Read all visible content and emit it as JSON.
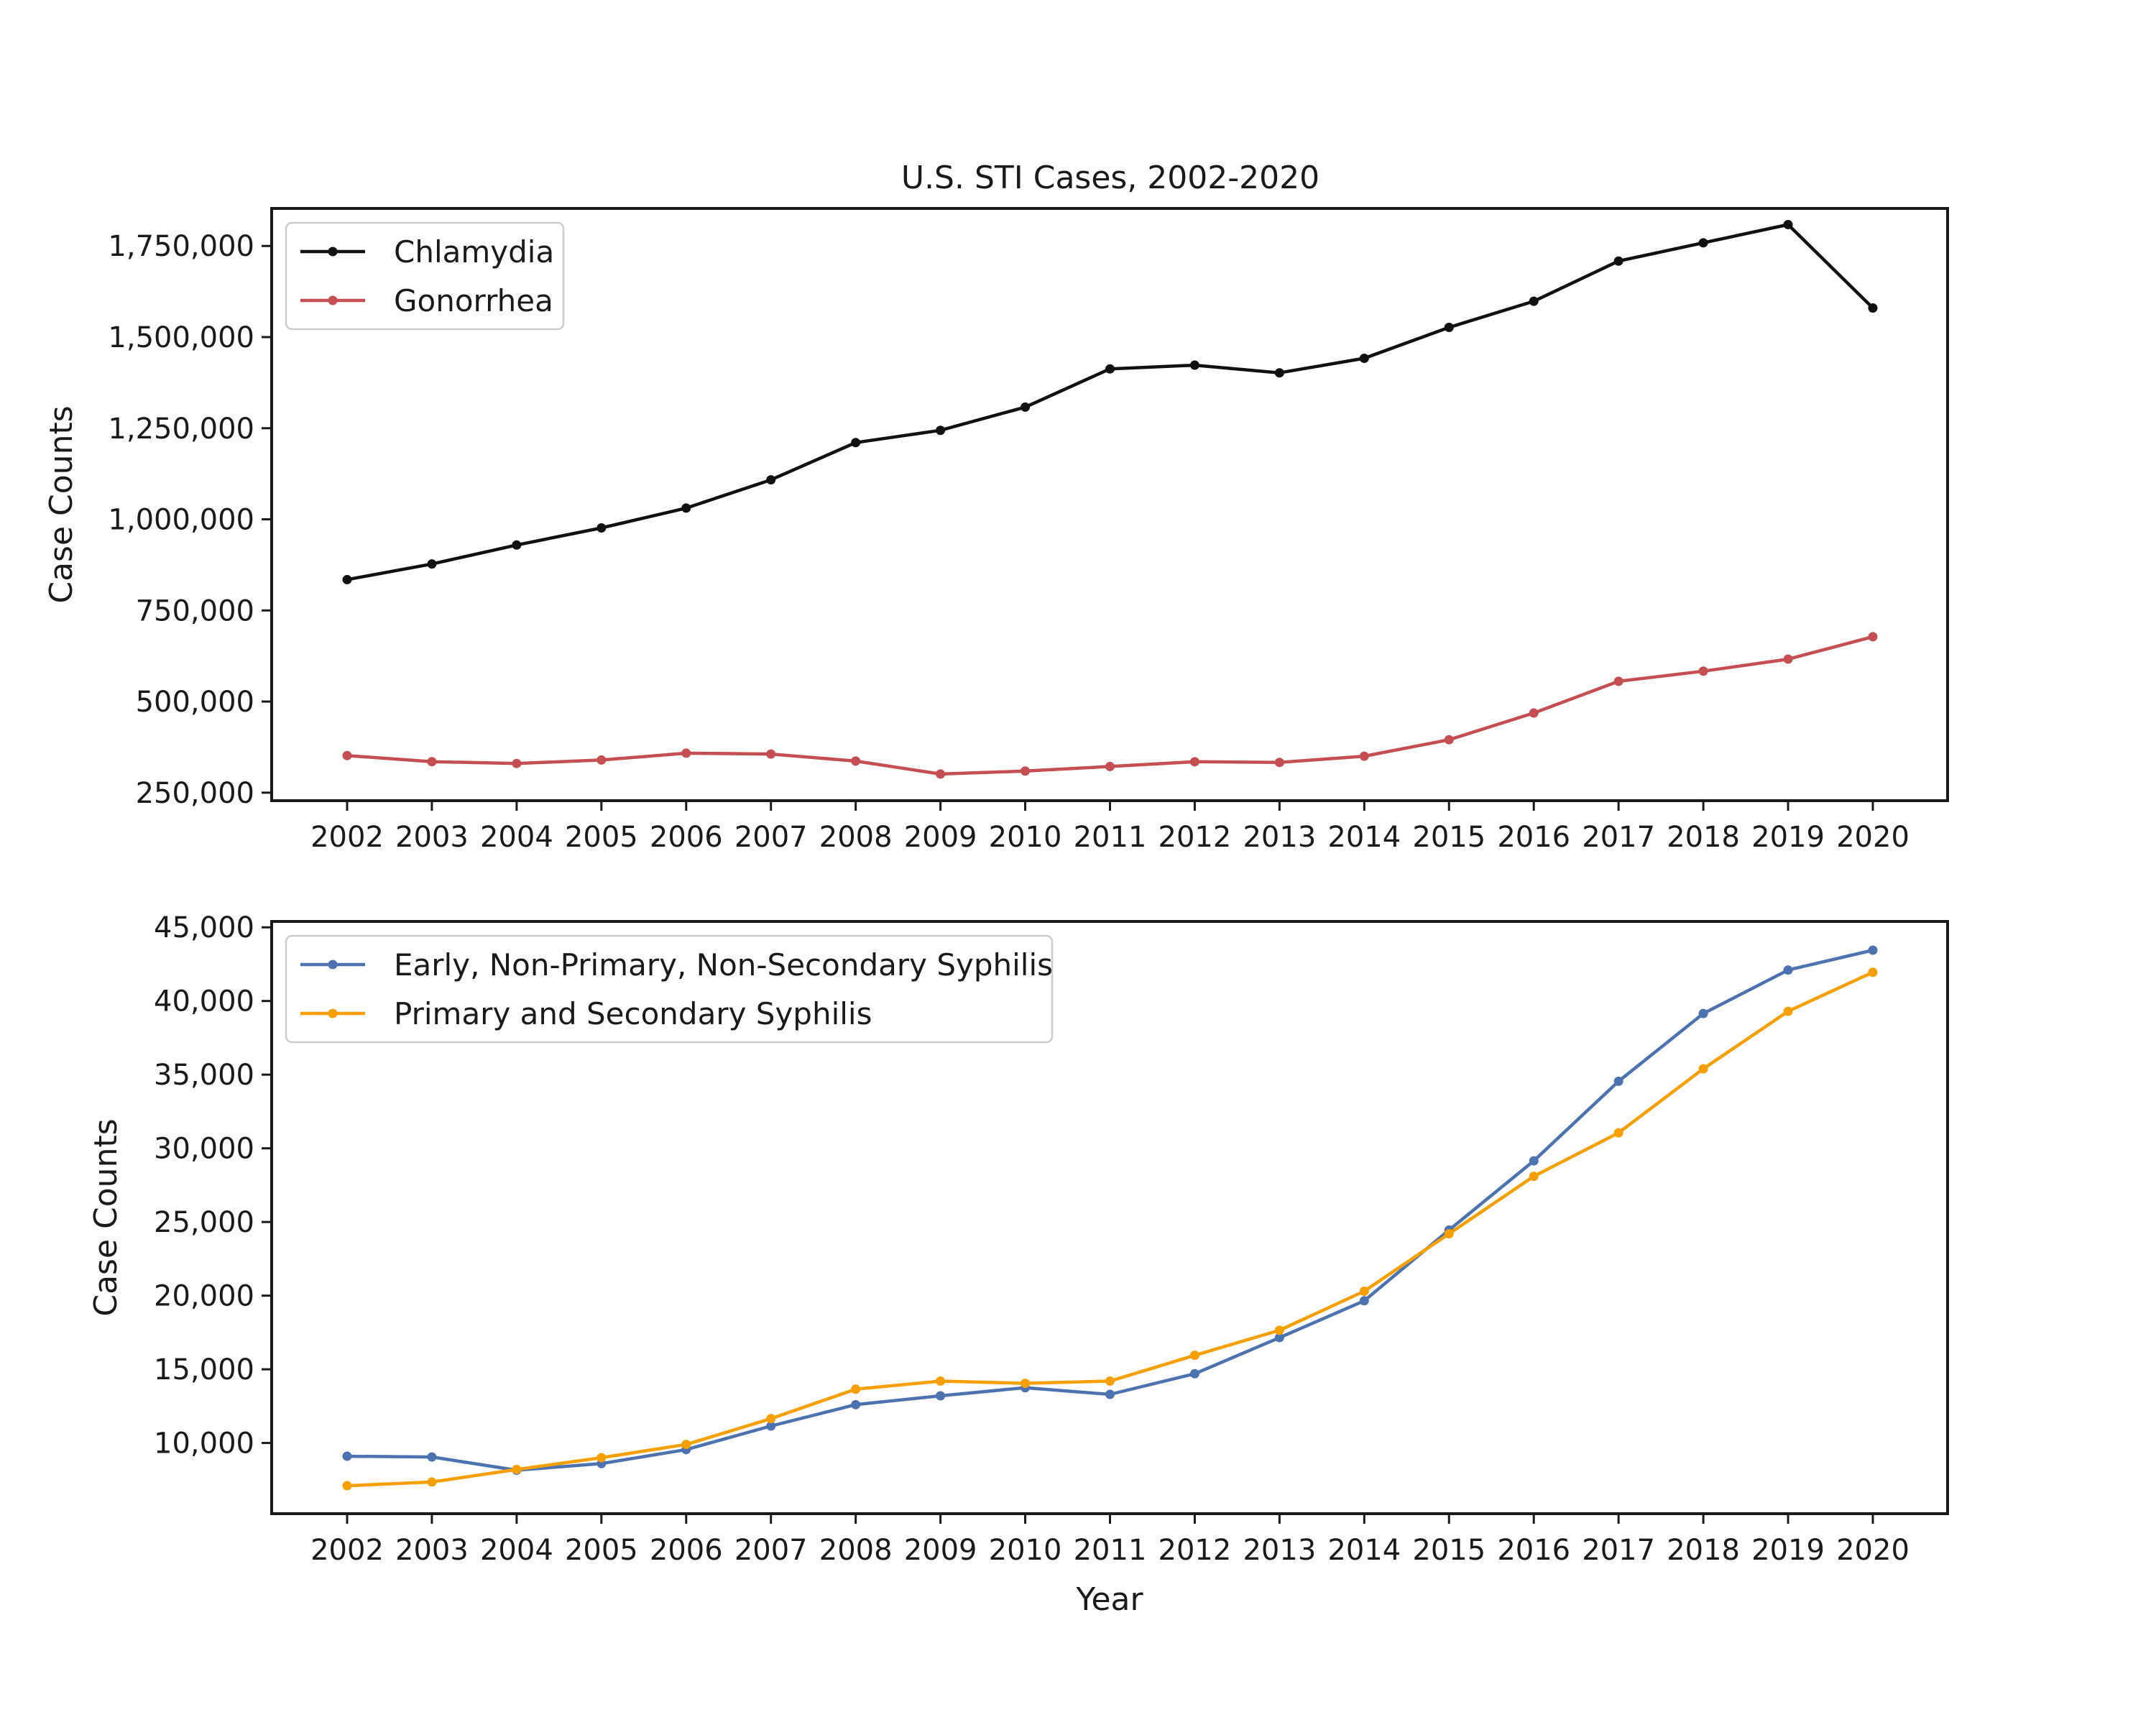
{
  "chart_data": [
    {
      "type": "line",
      "title": "U.S. STI Cases, 2002-2020",
      "xlabel": "",
      "ylabel": "Case Counts",
      "x": [
        "2002",
        "2003",
        "2004",
        "2005",
        "2006",
        "2007",
        "2008",
        "2009",
        "2010",
        "2011",
        "2012",
        "2013",
        "2014",
        "2015",
        "2016",
        "2017",
        "2018",
        "2019",
        "2020"
      ],
      "ylim": [
        228000,
        1853000
      ],
      "yticks": [
        250000,
        500000,
        750000,
        1000000,
        1250000,
        1500000,
        1750000
      ],
      "ytick_labels": [
        "250,000",
        "500,000",
        "750,000",
        "1,000,000",
        "1,250,000",
        "1,500,000",
        "1,750,000"
      ],
      "legend_position": "upper-left",
      "grid": false,
      "series": [
        {
          "name": "Chlamydia",
          "color": "#111111",
          "values": [
            834555,
            877478,
            929462,
            976445,
            1030911,
            1108374,
            1210523,
            1244180,
            1307893,
            1412791,
            1422976,
            1401906,
            1441789,
            1526658,
            1598354,
            1708569,
            1758668,
            1808703,
            1579885
          ]
        },
        {
          "name": "Gonorrhea",
          "color": "#c44e52",
          "values": [
            351852,
            335104,
            330132,
            339593,
            358366,
            355991,
            336742,
            301174,
            309341,
            321849,
            334826,
            333004,
            350062,
            395216,
            468514,
            555608,
            583405,
            616392,
            677769
          ]
        }
      ]
    },
    {
      "type": "line",
      "title": "",
      "xlabel": "Year",
      "ylabel": "Case Counts",
      "x": [
        "2002",
        "2003",
        "2004",
        "2005",
        "2006",
        "2007",
        "2008",
        "2009",
        "2010",
        "2011",
        "2012",
        "2013",
        "2014",
        "2015",
        "2016",
        "2017",
        "2018",
        "2019",
        "2020"
      ],
      "ylim": [
        5200,
        45400
      ],
      "yticks": [
        10000,
        15000,
        20000,
        25000,
        30000,
        35000,
        40000,
        45000
      ],
      "ytick_labels": [
        "10,000",
        "15,000",
        "20,000",
        "25,000",
        "30,000",
        "35,000",
        "40,000",
        "45,000"
      ],
      "legend_position": "upper-left",
      "grid": false,
      "series": [
        {
          "name": "Early, Non-Primary, Non-Secondary Syphilis",
          "color": "#4c72b0",
          "values": [
            9100,
            9050,
            8150,
            8600,
            9550,
            11150,
            12600,
            13200,
            13750,
            13300,
            14700,
            17150,
            19650,
            24450,
            29150,
            34550,
            39150,
            42100,
            43450
          ]
        },
        {
          "name": "Primary and Secondary Syphilis",
          "color": "#f5a000",
          "values": [
            7100,
            7350,
            8200,
            9000,
            9900,
            11650,
            13650,
            14200,
            14050,
            14200,
            15950,
            17650,
            20300,
            24200,
            28100,
            31050,
            35400,
            39300,
            41950
          ]
        }
      ]
    }
  ]
}
